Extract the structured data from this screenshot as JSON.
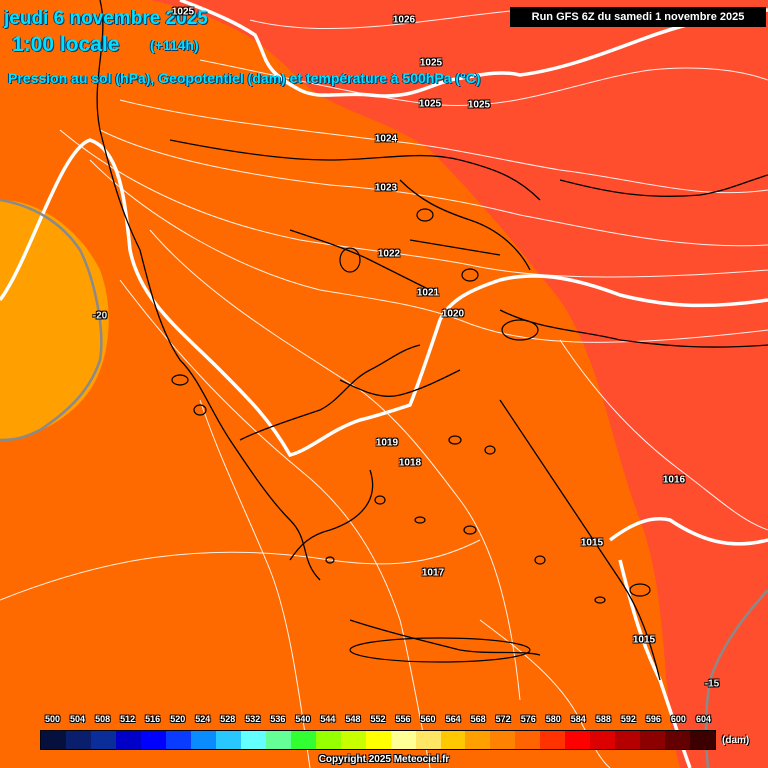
{
  "header": {
    "date": "jeudi 6 novembre 2025",
    "time": "1:00 locale",
    "lead": "(+114h)",
    "subtitle": "Pression au sol (hPa), Geopotentiel (dam) et température à 500hPa (°C)",
    "run": "Run GFS 6Z du samedi 1 novembre 2025"
  },
  "isobars": [
    "1026",
    "1025",
    "1025",
    "1025",
    "1025",
    "1024",
    "1023",
    "1022",
    "1021",
    "1020",
    "1019",
    "1018",
    "1017",
    "1016",
    "1015",
    "1015"
  ],
  "temperature_labels": [
    "-20",
    "-15"
  ],
  "legend": {
    "values": [
      "500",
      "504",
      "508",
      "512",
      "516",
      "520",
      "524",
      "528",
      "532",
      "536",
      "540",
      "544",
      "548",
      "552",
      "556",
      "560",
      "564",
      "568",
      "572",
      "576",
      "580",
      "584",
      "588",
      "592",
      "596",
      "600",
      "604"
    ],
    "colors": [
      "#06103e",
      "#0a1e6e",
      "#0a2d9a",
      "#0000c8",
      "#0000ff",
      "#0a3cff",
      "#0a8cff",
      "#28c8ff",
      "#64ffff",
      "#64ff96",
      "#32ff32",
      "#96ff00",
      "#c8ff00",
      "#ffff00",
      "#ffff96",
      "#ffe664",
      "#ffc800",
      "#ffa000",
      "#ff8200",
      "#ff6400",
      "#ff3200",
      "#ff0000",
      "#dc0000",
      "#b40000",
      "#8c0000",
      "#640000",
      "#3c0000"
    ],
    "unit": "(dam)"
  },
  "field_colors": {
    "dam_568": "#ffa000",
    "dam_572": "#ff6a00",
    "dam_576": "#ff4e2e"
  },
  "copyright": "Copyright 2025 Meteociel.fr"
}
